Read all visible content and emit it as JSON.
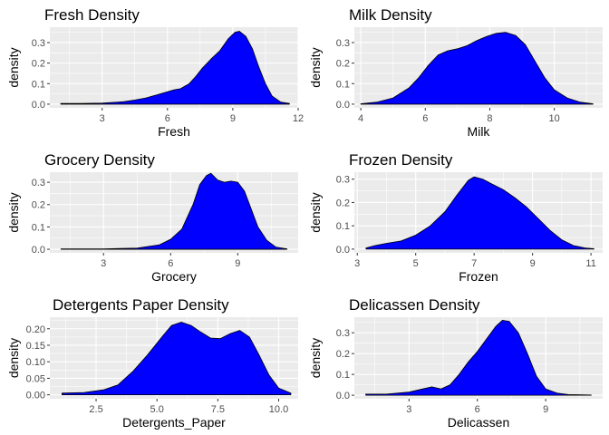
{
  "chart_data": [
    {
      "type": "area",
      "title": "Fresh Density",
      "xlabel": "Fresh",
      "ylabel": "density",
      "xlim": [
        0.6,
        12.0
      ],
      "ylim": [
        -0.018,
        0.375
      ],
      "xticks": [
        3,
        6,
        9,
        12
      ],
      "xtick_labels": [
        "3",
        "6",
        "9",
        "12"
      ],
      "yticks": [
        0.0,
        0.1,
        0.2,
        0.3
      ],
      "ytick_labels": [
        "0.0",
        "0.1",
        "0.2",
        "0.3"
      ],
      "grid": true,
      "fill": "#0000ff",
      "x": [
        1.1,
        2.0,
        3.0,
        4.0,
        4.5,
        5.0,
        5.5,
        6.0,
        6.3,
        6.6,
        7.0,
        7.3,
        7.6,
        8.0,
        8.4,
        8.8,
        9.1,
        9.3,
        9.6,
        9.9,
        10.2,
        10.5,
        10.8,
        11.2,
        11.6
      ],
      "y": [
        0.003,
        0.003,
        0.005,
        0.012,
        0.02,
        0.03,
        0.045,
        0.06,
        0.07,
        0.075,
        0.1,
        0.135,
        0.175,
        0.22,
        0.26,
        0.32,
        0.35,
        0.355,
        0.33,
        0.27,
        0.18,
        0.1,
        0.04,
        0.01,
        0.003
      ]
    },
    {
      "type": "area",
      "title": "Milk Density",
      "xlabel": "Milk",
      "ylabel": "density",
      "xlim": [
        3.8,
        11.5
      ],
      "ylim": [
        -0.018,
        0.375
      ],
      "xticks": [
        4,
        6,
        8,
        10
      ],
      "xtick_labels": [
        "4",
        "6",
        "8",
        "10"
      ],
      "yticks": [
        0.0,
        0.1,
        0.2,
        0.3
      ],
      "ytick_labels": [
        "0.0",
        "0.1",
        "0.2",
        "0.3"
      ],
      "grid": true,
      "fill": "#0000ff",
      "x": [
        4.0,
        4.5,
        5.0,
        5.5,
        5.8,
        6.1,
        6.4,
        6.7,
        7.0,
        7.3,
        7.6,
        7.9,
        8.2,
        8.5,
        8.8,
        9.1,
        9.4,
        9.7,
        10.0,
        10.4,
        10.8,
        11.2
      ],
      "y": [
        0.002,
        0.01,
        0.03,
        0.08,
        0.13,
        0.19,
        0.24,
        0.26,
        0.27,
        0.285,
        0.31,
        0.33,
        0.345,
        0.35,
        0.335,
        0.29,
        0.21,
        0.13,
        0.07,
        0.03,
        0.01,
        0.002
      ]
    },
    {
      "type": "area",
      "title": "Grocery Density",
      "xlabel": "Grocery",
      "ylabel": "density",
      "xlim": [
        0.6,
        11.7
      ],
      "ylim": [
        -0.016,
        0.345
      ],
      "xticks": [
        3,
        6,
        9
      ],
      "xtick_labels": [
        "3",
        "6",
        "9"
      ],
      "yticks": [
        0.0,
        0.1,
        0.2,
        0.3
      ],
      "ytick_labels": [
        "0.0",
        "0.1",
        "0.2",
        "0.3"
      ],
      "grid": true,
      "fill": "#0000ff",
      "x": [
        1.1,
        3.0,
        4.5,
        5.5,
        6.0,
        6.5,
        7.0,
        7.3,
        7.6,
        7.8,
        8.1,
        8.4,
        8.7,
        9.0,
        9.3,
        9.6,
        9.9,
        10.3,
        10.7,
        11.2
      ],
      "y": [
        0.002,
        0.002,
        0.005,
        0.02,
        0.045,
        0.09,
        0.2,
        0.29,
        0.33,
        0.34,
        0.31,
        0.3,
        0.305,
        0.3,
        0.26,
        0.18,
        0.1,
        0.04,
        0.01,
        0.002
      ]
    },
    {
      "type": "area",
      "title": "Frozen Density",
      "xlabel": "Frozen",
      "ylabel": "density",
      "xlim": [
        2.9,
        11.4
      ],
      "ylim": [
        -0.016,
        0.33
      ],
      "xticks": [
        3,
        5,
        7,
        9,
        11
      ],
      "xtick_labels": [
        "3",
        "5",
        "7",
        "9",
        "11"
      ],
      "yticks": [
        0.0,
        0.1,
        0.2,
        0.3
      ],
      "ytick_labels": [
        "0.0",
        "0.1",
        "0.2",
        "0.3"
      ],
      "grid": true,
      "fill": "#0000ff",
      "x": [
        3.3,
        3.6,
        4.0,
        4.5,
        5.0,
        5.5,
        6.0,
        6.4,
        6.8,
        7.0,
        7.3,
        7.6,
        8.0,
        8.4,
        8.8,
        9.2,
        9.6,
        10.0,
        10.4,
        10.8,
        11.1
      ],
      "y": [
        0.005,
        0.015,
        0.025,
        0.035,
        0.06,
        0.1,
        0.16,
        0.23,
        0.295,
        0.31,
        0.3,
        0.28,
        0.255,
        0.22,
        0.18,
        0.13,
        0.08,
        0.04,
        0.015,
        0.005,
        0.002
      ]
    },
    {
      "type": "area",
      "title": "Detergents Paper Density",
      "xlabel": "Detergents_Paper",
      "ylabel": "density",
      "xlim": [
        0.6,
        10.8
      ],
      "ylim": [
        -0.012,
        0.235
      ],
      "xticks": [
        2.5,
        5.0,
        7.5,
        10.0
      ],
      "xtick_labels": [
        "2.5",
        "5.0",
        "7.5",
        "10.0"
      ],
      "yticks": [
        0.0,
        0.05,
        0.1,
        0.15,
        0.2
      ],
      "ytick_labels": [
        "0.00",
        "0.05",
        "0.10",
        "0.15",
        "0.20"
      ],
      "grid": true,
      "fill": "#0000ff",
      "x": [
        1.1,
        2.0,
        2.8,
        3.4,
        4.0,
        4.6,
        5.2,
        5.6,
        6.0,
        6.4,
        6.8,
        7.2,
        7.6,
        8.0,
        8.4,
        8.8,
        9.2,
        9.6,
        10.0,
        10.5
      ],
      "y": [
        0.005,
        0.007,
        0.015,
        0.03,
        0.07,
        0.12,
        0.175,
        0.21,
        0.22,
        0.21,
        0.19,
        0.172,
        0.17,
        0.185,
        0.195,
        0.175,
        0.12,
        0.06,
        0.02,
        0.005
      ]
    },
    {
      "type": "area",
      "title": "Delicassen Density",
      "xlabel": "Delicassen",
      "ylabel": "density",
      "xlim": [
        0.6,
        11.5
      ],
      "ylim": [
        -0.017,
        0.375
      ],
      "xticks": [
        3,
        6,
        9
      ],
      "xtick_labels": [
        "3",
        "6",
        "9"
      ],
      "yticks": [
        0.0,
        0.1,
        0.2,
        0.3
      ],
      "ytick_labels": [
        "0.0",
        "0.1",
        "0.2",
        "0.3"
      ],
      "grid": true,
      "fill": "#0000ff",
      "x": [
        1.1,
        2.0,
        3.0,
        3.6,
        4.0,
        4.4,
        4.8,
        5.2,
        5.6,
        6.0,
        6.4,
        6.8,
        7.1,
        7.4,
        7.8,
        8.2,
        8.6,
        9.0,
        9.5,
        10.0,
        11.0
      ],
      "y": [
        0.005,
        0.005,
        0.015,
        0.03,
        0.04,
        0.03,
        0.05,
        0.1,
        0.16,
        0.21,
        0.27,
        0.33,
        0.36,
        0.355,
        0.3,
        0.2,
        0.09,
        0.03,
        0.01,
        0.003,
        0.001
      ]
    }
  ]
}
